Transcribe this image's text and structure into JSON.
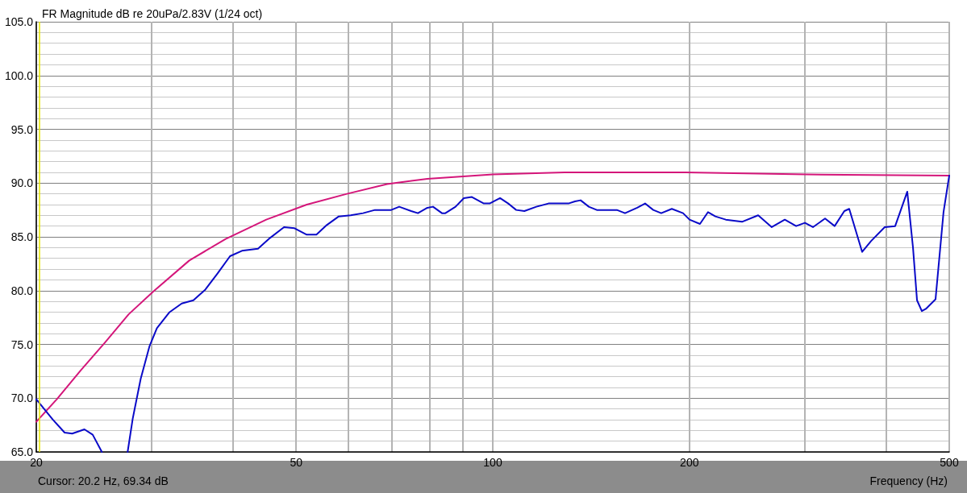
{
  "chart_data": {
    "type": "line",
    "title": "FR Magnitude dB re 20uPa/2.83V (1/24 oct)",
    "xlabel": "Frequency (Hz)",
    "annotations": [
      "Cursor: 20.2 Hz, 69.34 dB"
    ],
    "log": "x",
    "grid": true,
    "marker": "none",
    "line_style": "solid",
    "xlim": [
      20,
      500
    ],
    "xticks": [
      20,
      {
        "value": 30,
        "label": null
      },
      {
        "value": 40,
        "label": null
      },
      50,
      {
        "value": 60,
        "label": null
      },
      {
        "value": 70,
        "label": null
      },
      {
        "value": 80,
        "label": null
      },
      {
        "value": 90,
        "label": null
      },
      100,
      200,
      {
        "value": 300,
        "label": null
      },
      {
        "value": 400,
        "label": null
      },
      500
    ],
    "ylim": [
      65,
      105
    ],
    "yticks": [
      {
        "value": 65,
        "label": "65.0"
      },
      {
        "value": 70,
        "label": "70.0"
      },
      {
        "value": 75,
        "label": "75.0"
      },
      {
        "value": 80,
        "label": "80.0"
      },
      {
        "value": 85,
        "label": "85.0"
      },
      {
        "value": 90,
        "label": "90.0"
      },
      {
        "value": 95,
        "label": "95.0"
      },
      {
        "value": 100,
        "label": "100.0"
      },
      {
        "value": 105,
        "label": "105.0"
      }
    ],
    "ref_lines": [
      {
        "axis": "x",
        "value": 20.2,
        "label": null,
        "color": "#e6e600"
      }
    ],
    "series": [
      {
        "color": "#d4167a",
        "x": [
          20,
          21.5,
          23.4,
          25.5,
          27.7,
          30.2,
          34.3,
          39.0,
          45.0,
          51.9,
          59.8,
          68.9,
          79.4,
          100,
          128.8,
          197.3,
          302.2,
          500
        ],
        "values": [
          67.8,
          69.9,
          72.6,
          75.2,
          77.8,
          79.9,
          82.8,
          84.8,
          86.6,
          88.0,
          89.0,
          89.9,
          90.4,
          90.8,
          91.0,
          91.0,
          90.8,
          90.7
        ]
      },
      {
        "color": "#0a0ac8",
        "x": [
          20,
          21.2,
          22.1,
          22.7,
          23.7,
          24.4,
          25.2,
          26.5,
          27.6,
          28.1,
          28.9,
          29.8,
          30.6,
          32.0,
          33.4,
          34.8,
          36.3,
          37.9,
          39.6,
          41.3,
          43.7,
          45.6,
          47.9,
          49.7,
          51.9,
          53.7,
          55.7,
          58.1,
          60.6,
          63.3,
          66.0,
          69.9,
          71.9,
          75.0,
          76.8,
          79.4,
          81.0,
          83.6,
          84.6,
          87.7,
          90.3,
          92.9,
          96.9,
          98.9,
          102.6,
          105.6,
          108.6,
          111.8,
          116.6,
          121.7,
          125.2,
          130.6,
          133.6,
          136.3,
          140.3,
          144.3,
          150.6,
          154.9,
          159.4,
          166.4,
          171.1,
          176.1,
          181.1,
          188.0,
          195.6,
          200.1,
          207.6,
          213.6,
          219.2,
          227.4,
          240.8,
          254.9,
          267.4,
          280.0,
          291.4,
          300.6,
          309.2,
          322.7,
          333.8,
          345.4,
          351.4,
          367.8,
          379.4,
          398.2,
          413.2,
          431.2,
          440.0,
          446.3,
          453.9,
          460.4,
          476.4,
          490.0,
          500
        ],
        "values": [
          69.9,
          68.0,
          66.8,
          66.7,
          67.1,
          66.6,
          65.0,
          null,
          65.0,
          68.1,
          71.8,
          74.8,
          76.5,
          78.0,
          78.8,
          79.1,
          80.1,
          81.6,
          83.2,
          83.7,
          83.9,
          84.9,
          85.9,
          85.8,
          85.2,
          85.2,
          86.1,
          86.9,
          87.0,
          87.2,
          87.5,
          87.5,
          87.8,
          87.4,
          87.2,
          87.7,
          87.8,
          87.2,
          87.2,
          87.8,
          88.6,
          88.7,
          88.1,
          88.1,
          88.6,
          88.1,
          87.5,
          87.4,
          87.8,
          88.1,
          88.1,
          88.1,
          88.3,
          88.4,
          87.8,
          87.5,
          87.5,
          87.5,
          87.2,
          87.7,
          88.1,
          87.5,
          87.2,
          87.6,
          87.2,
          86.6,
          86.2,
          87.3,
          86.9,
          86.6,
          86.4,
          87.0,
          85.9,
          86.6,
          86.0,
          86.3,
          85.9,
          86.7,
          86.0,
          87.4,
          87.6,
          83.6,
          84.6,
          85.9,
          86.0,
          89.2,
          84.0,
          79.1,
          78.1,
          78.3,
          79.2,
          87.3,
          90.7
        ]
      }
    ]
  }
}
